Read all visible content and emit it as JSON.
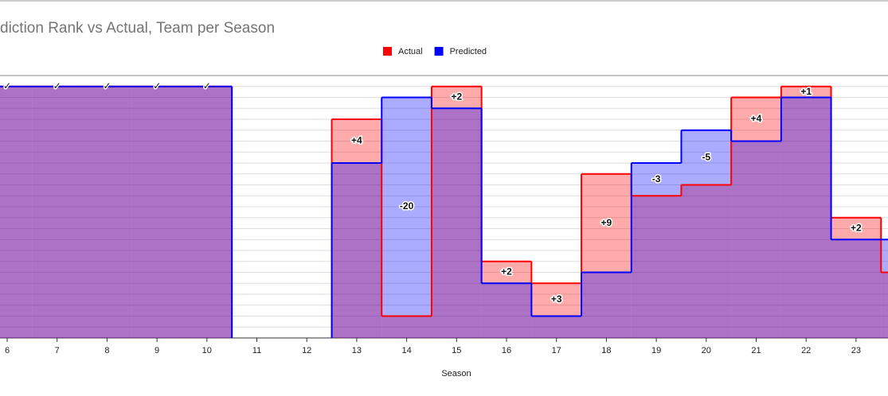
{
  "chart_data": {
    "type": "step-area",
    "title": "diction Rank vs Actual, Team per Season",
    "x_label": "Season",
    "categories": [
      "6",
      "7",
      "8",
      "9",
      "10",
      "11",
      "12",
      "13",
      "14",
      "15",
      "16",
      "17",
      "18",
      "19",
      "20",
      "21",
      "22",
      "23",
      null
    ],
    "series": [
      {
        "name": "Actual",
        "color": "#ff0000",
        "values": [
          1,
          1,
          1,
          1,
          1,
          null,
          null,
          4,
          22,
          1,
          17,
          19,
          9,
          11,
          10,
          2,
          1,
          13,
          18
        ]
      },
      {
        "name": "Predicted",
        "color": "#0000ff",
        "values": [
          1,
          1,
          1,
          1,
          1,
          null,
          null,
          8,
          2,
          3,
          19,
          22,
          18,
          8,
          5,
          6,
          2,
          15,
          15
        ]
      }
    ],
    "annotations": [
      "✓",
      "✓",
      "✓",
      "✓",
      "✓",
      null,
      null,
      "+4",
      "-20",
      "+2",
      "+2",
      "+3",
      "+9",
      "-3",
      "-5",
      "+4",
      "+1",
      "+2",
      null
    ],
    "ylim": [
      24,
      0
    ],
    "yticks": [
      0,
      1,
      2,
      3,
      4,
      5,
      6,
      7,
      8,
      9,
      10,
      11,
      12,
      13,
      14,
      15,
      16,
      17,
      18,
      19,
      20,
      21,
      22,
      23,
      24
    ],
    "grid": true,
    "legend": "top"
  }
}
